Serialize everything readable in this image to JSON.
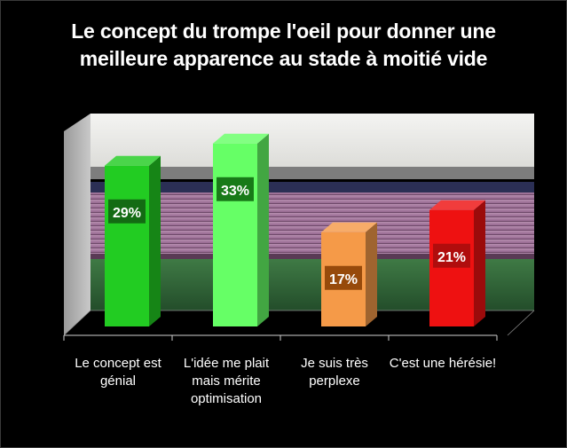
{
  "chart_data": {
    "type": "bar",
    "title_lines": [
      "Le concept du trompe l'oeil pour donner une",
      "meilleure apparence au stade à moitié vide"
    ],
    "categories": [
      "Le concept est génial",
      "L'idée me plait mais mérite optimisation",
      "Je suis très perplexe",
      "C'est une hérésie!"
    ],
    "values": [
      29,
      33,
      17,
      21
    ],
    "data_labels": [
      "29%",
      "33%",
      "17%",
      "21%"
    ],
    "unit": "%",
    "ylim": [
      0,
      35
    ],
    "grid": false,
    "legend": "none",
    "background": "stadium-photo",
    "colors": {
      "bars": [
        "#22cc22",
        "#66ff66",
        "#f59a48",
        "#ee1111"
      ],
      "label_boxes": [
        "#136b13",
        "#187a18",
        "#974a0b",
        "#b00d0d"
      ],
      "text": "#ffffff",
      "page": "#000000"
    }
  }
}
